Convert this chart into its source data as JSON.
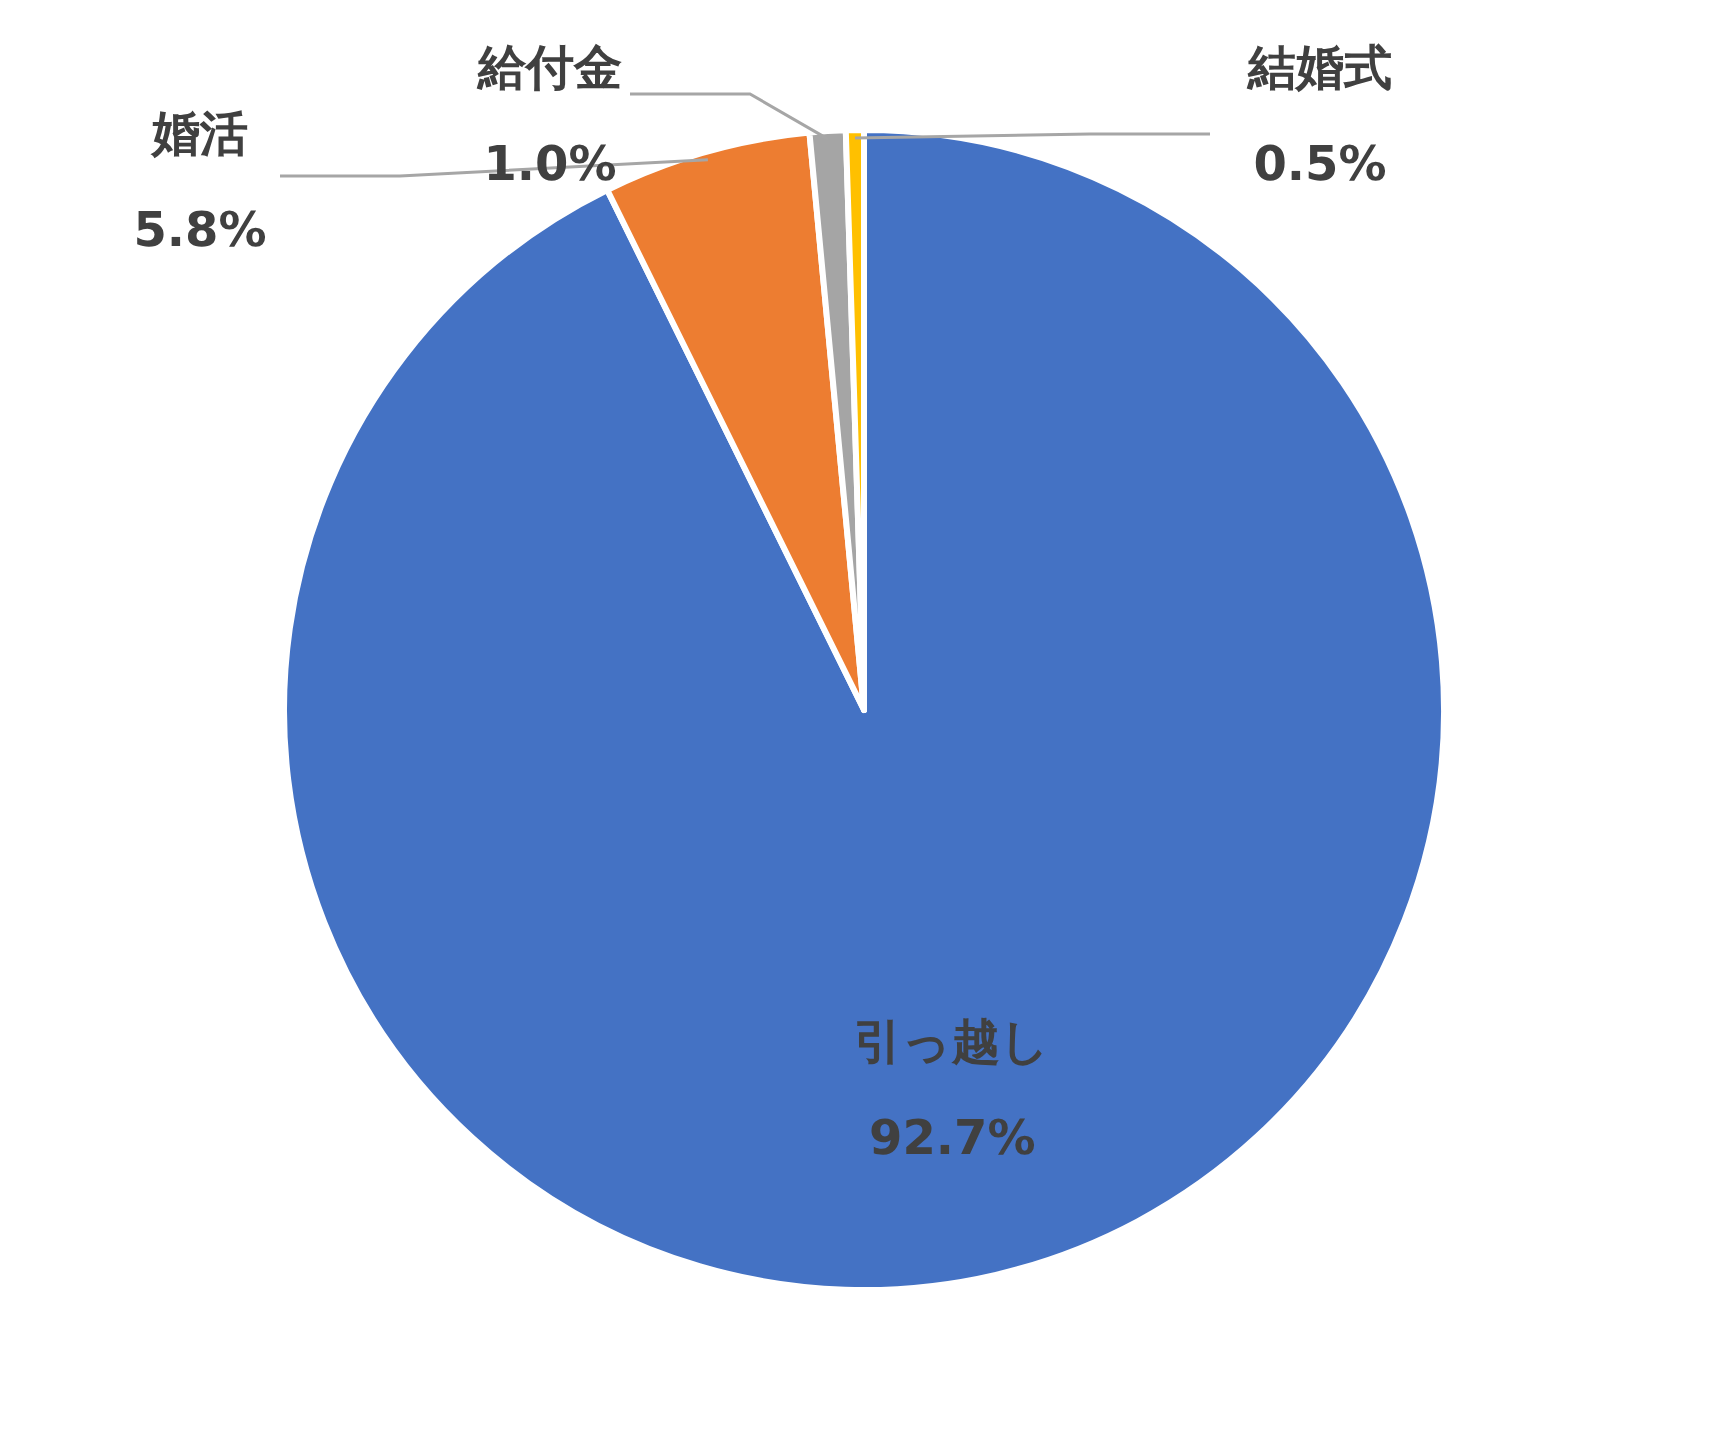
{
  "chart_data": {
    "type": "pie",
    "categories": [
      "引っ越し",
      "婚活",
      "給付金",
      "結婚式"
    ],
    "values": [
      92.7,
      5.8,
      1.0,
      0.5
    ],
    "colors": [
      "#4472c4",
      "#ed7d31",
      "#a5a5a5",
      "#ffc000"
    ],
    "value_labels": [
      "92.7%",
      "5.8%",
      "1.0%",
      "0.5%"
    ],
    "legend": false
  }
}
